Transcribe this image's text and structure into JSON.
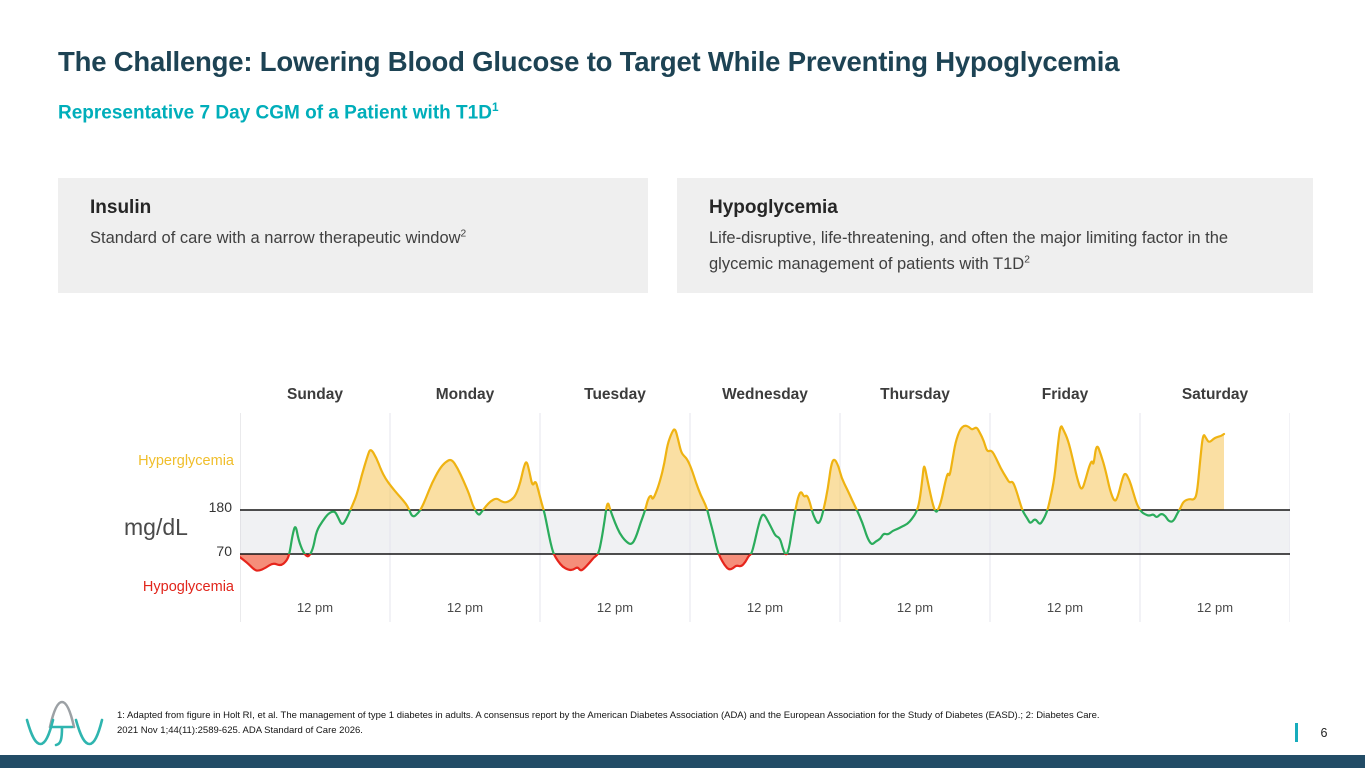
{
  "slide": {
    "title": "The Challenge: Lowering Blood Glucose to Target While Preventing Hypoglycemia",
    "subtitle": "Representative 7 Day CGM of a Patient with T1D",
    "subtitle_sup": "1",
    "page_number": "6"
  },
  "callouts": [
    {
      "title": "Insulin",
      "body": "Standard of care with a narrow therapeutic window",
      "sup": "2"
    },
    {
      "title": "Hypoglycemia",
      "body": "Life-disruptive, life-threatening, and often the major limiting factor in the glycemic management of patients with T1D",
      "sup": "2"
    }
  ],
  "footnote_lines": [
    "1: Adapted from figure in Holt RI, et al. The management of type 1 diabetes in adults. A consensus report by the American Diabetes Association (ADA) and the European Association for the Study of Diabetes (EASD).; 2: Diabetes Care.",
    "2021 Nov 1;44(11):2589-625. ADA Standard of Care 2026."
  ],
  "logo": {
    "alt": "vTv Therapeutics logo"
  },
  "chart_data": {
    "type": "line",
    "title": "Representative 7 Day CGM of a Patient with T1D",
    "ylabel": "mg/dL",
    "y_ticks": [
      70,
      180
    ],
    "y_thresholds": {
      "high": 180,
      "low": 70
    },
    "zone_labels": {
      "above": "Hyperglycemia",
      "below": "Hypoglycemia"
    },
    "days": [
      "Sunday",
      "Monday",
      "Tuesday",
      "Wednesday",
      "Thursday",
      "Friday",
      "Saturday"
    ],
    "x_tick_label": "12 pm",
    "x_range_days": [
      0,
      7
    ],
    "data_end_day": 6.56,
    "grid": "vertical-day-boundaries",
    "legend_position": "none",
    "colors": {
      "in_range_line": "#2BAC5C",
      "high_line": "#EFB312",
      "high_fill": "rgba(247,202,102,0.6)",
      "low_line": "#E6251C",
      "low_fill": "rgba(241,94,66,0.7)",
      "band_fill": "#F0F1F3",
      "threshold_line": "#141414",
      "gridline": "#E4E4EC",
      "axis_line": "#D4D4D8"
    },
    "series": [
      {
        "name": "glucose_mg_dl",
        "points": [
          [
            0.0,
            62
          ],
          [
            0.05,
            48
          ],
          [
            0.09,
            32
          ],
          [
            0.12,
            27
          ],
          [
            0.17,
            35
          ],
          [
            0.22,
            48
          ],
          [
            0.27,
            40
          ],
          [
            0.31,
            52
          ],
          [
            0.33,
            70
          ],
          [
            0.35,
            118
          ],
          [
            0.37,
            145
          ],
          [
            0.39,
            105
          ],
          [
            0.42,
            75
          ],
          [
            0.45,
            62
          ],
          [
            0.47,
            70
          ],
          [
            0.49,
            88
          ],
          [
            0.51,
            128
          ],
          [
            0.55,
            152
          ],
          [
            0.59,
            172
          ],
          [
            0.63,
            178
          ],
          [
            0.65,
            165
          ],
          [
            0.68,
            140
          ],
          [
            0.71,
            158
          ],
          [
            0.73,
            175
          ],
          [
            0.75,
            192
          ],
          [
            0.78,
            220
          ],
          [
            0.81,
            265
          ],
          [
            0.85,
            315
          ],
          [
            0.87,
            335
          ],
          [
            0.91,
            310
          ],
          [
            0.94,
            280
          ],
          [
            0.97,
            258
          ],
          [
            1.01,
            238
          ],
          [
            1.05,
            220
          ],
          [
            1.09,
            203
          ],
          [
            1.12,
            188
          ],
          [
            1.15,
            160
          ],
          [
            1.19,
            173
          ],
          [
            1.21,
            185
          ],
          [
            1.24,
            210
          ],
          [
            1.28,
            248
          ],
          [
            1.33,
            283
          ],
          [
            1.37,
            300
          ],
          [
            1.41,
            308
          ],
          [
            1.45,
            285
          ],
          [
            1.49,
            253
          ],
          [
            1.53,
            218
          ],
          [
            1.55,
            192
          ],
          [
            1.59,
            165
          ],
          [
            1.61,
            175
          ],
          [
            1.64,
            190
          ],
          [
            1.67,
            202
          ],
          [
            1.71,
            210
          ],
          [
            1.74,
            202
          ],
          [
            1.77,
            198
          ],
          [
            1.81,
            205
          ],
          [
            1.84,
            218
          ],
          [
            1.87,
            250
          ],
          [
            1.89,
            285
          ],
          [
            1.91,
            305
          ],
          [
            1.93,
            275
          ],
          [
            1.95,
            238
          ],
          [
            1.97,
            255
          ],
          [
            1.99,
            228
          ],
          [
            2.01,
            198
          ],
          [
            2.03,
            173
          ],
          [
            2.05,
            135
          ],
          [
            2.07,
            98
          ],
          [
            2.09,
            70
          ],
          [
            2.12,
            52
          ],
          [
            2.15,
            38
          ],
          [
            2.19,
            30
          ],
          [
            2.22,
            30
          ],
          [
            2.25,
            38
          ],
          [
            2.27,
            28
          ],
          [
            2.29,
            32
          ],
          [
            2.33,
            48
          ],
          [
            2.36,
            62
          ],
          [
            2.39,
            70
          ],
          [
            2.41,
            105
          ],
          [
            2.43,
            152
          ],
          [
            2.45,
            205
          ],
          [
            2.47,
            178
          ],
          [
            2.5,
            148
          ],
          [
            2.53,
            122
          ],
          [
            2.57,
            102
          ],
          [
            2.61,
            92
          ],
          [
            2.64,
            112
          ],
          [
            2.67,
            148
          ],
          [
            2.7,
            178
          ],
          [
            2.72,
            208
          ],
          [
            2.74,
            218
          ],
          [
            2.75,
            205
          ],
          [
            2.77,
            220
          ],
          [
            2.8,
            252
          ],
          [
            2.83,
            298
          ],
          [
            2.85,
            345
          ],
          [
            2.88,
            375
          ],
          [
            2.9,
            385
          ],
          [
            2.92,
            358
          ],
          [
            2.94,
            325
          ],
          [
            2.96,
            315
          ],
          [
            2.98,
            308
          ],
          [
            3.01,
            283
          ],
          [
            3.04,
            248
          ],
          [
            3.07,
            218
          ],
          [
            3.11,
            188
          ],
          [
            3.13,
            158
          ],
          [
            3.16,
            115
          ],
          [
            3.18,
            82
          ],
          [
            3.2,
            62
          ],
          [
            3.23,
            42
          ],
          [
            3.26,
            30
          ],
          [
            3.29,
            35
          ],
          [
            3.31,
            42
          ],
          [
            3.34,
            38
          ],
          [
            3.37,
            50
          ],
          [
            3.39,
            65
          ],
          [
            3.41,
            70
          ],
          [
            3.43,
            98
          ],
          [
            3.45,
            132
          ],
          [
            3.47,
            160
          ],
          [
            3.49,
            172
          ],
          [
            3.52,
            152
          ],
          [
            3.55,
            130
          ],
          [
            3.57,
            115
          ],
          [
            3.6,
            110
          ],
          [
            3.62,
            82
          ],
          [
            3.64,
            65
          ],
          [
            3.66,
            82
          ],
          [
            3.68,
            130
          ],
          [
            3.7,
            175
          ],
          [
            3.72,
            212
          ],
          [
            3.74,
            228
          ],
          [
            3.76,
            212
          ],
          [
            3.78,
            218
          ],
          [
            3.8,
            198
          ],
          [
            3.82,
            168
          ],
          [
            3.85,
            145
          ],
          [
            3.87,
            152
          ],
          [
            3.89,
            180
          ],
          [
            3.92,
            235
          ],
          [
            3.94,
            292
          ],
          [
            3.96,
            310
          ],
          [
            3.99,
            290
          ],
          [
            4.01,
            260
          ],
          [
            4.05,
            230
          ],
          [
            4.08,
            205
          ],
          [
            4.11,
            182
          ],
          [
            4.15,
            148
          ],
          [
            4.18,
            112
          ],
          [
            4.21,
            92
          ],
          [
            4.24,
            102
          ],
          [
            4.27,
            108
          ],
          [
            4.29,
            122
          ],
          [
            4.32,
            118
          ],
          [
            4.35,
            128
          ],
          [
            4.38,
            132
          ],
          [
            4.41,
            138
          ],
          [
            4.45,
            145
          ],
          [
            4.48,
            158
          ],
          [
            4.51,
            175
          ],
          [
            4.53,
            200
          ],
          [
            4.55,
            260
          ],
          [
            4.56,
            298
          ],
          [
            4.58,
            260
          ],
          [
            4.6,
            225
          ],
          [
            4.62,
            192
          ],
          [
            4.64,
            172
          ],
          [
            4.66,
            185
          ],
          [
            4.68,
            210
          ],
          [
            4.7,
            248
          ],
          [
            4.72,
            275
          ],
          [
            4.73,
            262
          ],
          [
            4.75,
            305
          ],
          [
            4.77,
            350
          ],
          [
            4.8,
            382
          ],
          [
            4.83,
            392
          ],
          [
            4.86,
            388
          ],
          [
            4.88,
            380
          ],
          [
            4.91,
            388
          ],
          [
            4.93,
            375
          ],
          [
            4.96,
            352
          ],
          [
            4.98,
            325
          ],
          [
            5.01,
            330
          ],
          [
            5.04,
            310
          ],
          [
            5.07,
            285
          ],
          [
            5.11,
            260
          ],
          [
            5.13,
            248
          ],
          [
            5.15,
            252
          ],
          [
            5.17,
            235
          ],
          [
            5.2,
            198
          ],
          [
            5.22,
            175
          ],
          [
            5.25,
            158
          ],
          [
            5.27,
            145
          ],
          [
            5.3,
            160
          ],
          [
            5.33,
            143
          ],
          [
            5.35,
            152
          ],
          [
            5.38,
            175
          ],
          [
            5.4,
            205
          ],
          [
            5.43,
            260
          ],
          [
            5.45,
            335
          ],
          [
            5.47,
            395
          ],
          [
            5.49,
            380
          ],
          [
            5.52,
            355
          ],
          [
            5.55,
            310
          ],
          [
            5.58,
            260
          ],
          [
            5.61,
            225
          ],
          [
            5.64,
            260
          ],
          [
            5.66,
            288
          ],
          [
            5.68,
            305
          ],
          [
            5.69,
            290
          ],
          [
            5.71,
            348
          ],
          [
            5.74,
            318
          ],
          [
            5.77,
            280
          ],
          [
            5.8,
            228
          ],
          [
            5.83,
            200
          ],
          [
            5.85,
            210
          ],
          [
            5.88,
            255
          ],
          [
            5.9,
            275
          ],
          [
            5.93,
            255
          ],
          [
            5.95,
            230
          ],
          [
            5.98,
            192
          ],
          [
            6.01,
            175
          ],
          [
            6.03,
            170
          ],
          [
            6.06,
            165
          ],
          [
            6.09,
            170
          ],
          [
            6.11,
            160
          ],
          [
            6.14,
            172
          ],
          [
            6.17,
            165
          ],
          [
            6.19,
            152
          ],
          [
            6.22,
            150
          ],
          [
            6.25,
            172
          ],
          [
            6.27,
            185
          ],
          [
            6.29,
            202
          ],
          [
            6.33,
            208
          ],
          [
            6.36,
            205
          ],
          [
            6.38,
            220
          ],
          [
            6.4,
            300
          ],
          [
            6.42,
            372
          ],
          [
            6.44,
            360
          ],
          [
            6.46,
            348
          ],
          [
            6.49,
            358
          ],
          [
            6.51,
            362
          ],
          [
            6.54,
            365
          ],
          [
            6.56,
            370
          ]
        ]
      }
    ]
  }
}
